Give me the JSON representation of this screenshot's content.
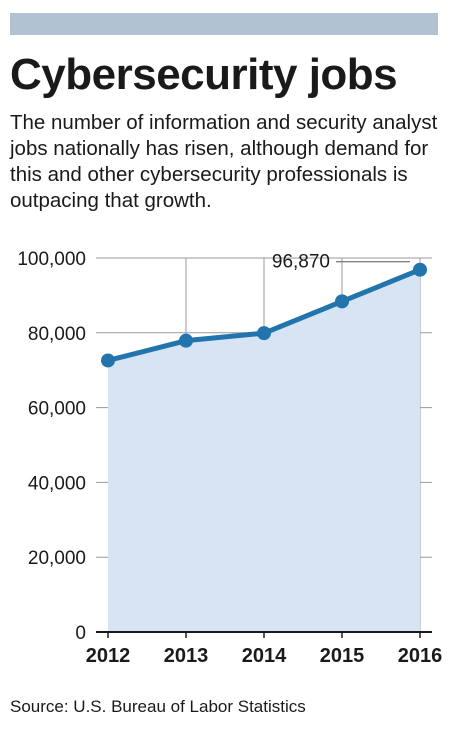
{
  "header": {
    "title": "Cybersecurity jobs",
    "subtitle": "The number of information and security analyst jobs nationally has risen, although demand for this and other cybersecurity professionals is outpacing that growth."
  },
  "footer": {
    "source": "Source: U.S. Bureau of Labor Statistics"
  },
  "colors": {
    "line": "#2274ad",
    "area": "#d6e4f3",
    "grid": "#999999",
    "bar": "#b1c3d3"
  },
  "chart_data": {
    "type": "area",
    "categories": [
      "2012",
      "2013",
      "2014",
      "2015",
      "2016"
    ],
    "values": [
      72600,
      77900,
      79900,
      88400,
      96870
    ],
    "ylim": [
      0,
      100000
    ],
    "yticks": [
      0,
      20000,
      40000,
      60000,
      80000,
      100000
    ],
    "ytick_labels": [
      "0",
      "20,000",
      "40,000",
      "60,000",
      "80,000",
      "100,000"
    ],
    "annotations": [
      {
        "category": "2016",
        "text": "96,870"
      }
    ],
    "grid": true,
    "title": "",
    "xlabel": "",
    "ylabel": ""
  }
}
